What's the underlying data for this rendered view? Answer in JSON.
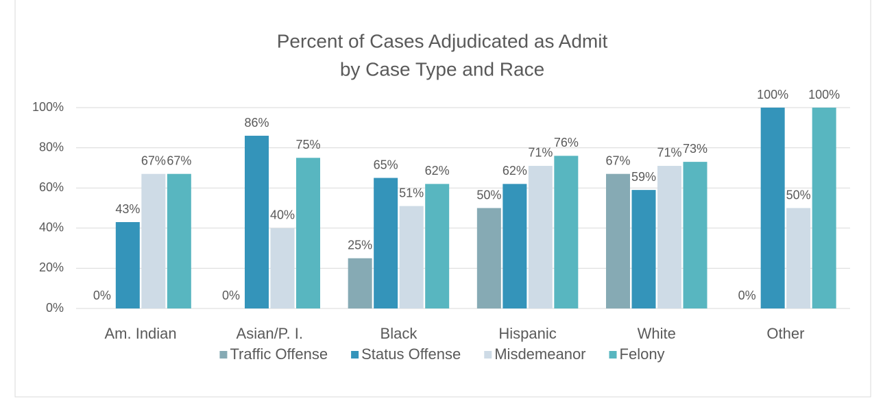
{
  "chart_data": {
    "type": "bar",
    "title": [
      "Percent of Cases Adjudicated as Admit",
      "by Case Type and Race"
    ],
    "categories": [
      "Am. Indian",
      "Asian/P. I.",
      "Black",
      "Hispanic",
      "White",
      "Other"
    ],
    "series": [
      {
        "name": "Traffic Offense",
        "color": "#86aab4",
        "values": [
          0,
          0,
          25,
          50,
          67,
          0
        ],
        "value_labels": [
          "0%",
          "0%",
          "25%",
          "50%",
          "67%",
          "0%"
        ]
      },
      {
        "name": "Status Offense",
        "color": "#3494ba",
        "values": [
          43,
          86,
          65,
          62,
          59,
          100
        ],
        "value_labels": [
          "43%",
          "86%",
          "65%",
          "62%",
          "59%",
          "100%"
        ]
      },
      {
        "name": "Misdemeanor",
        "color": "#cedbe6",
        "values": [
          67,
          40,
          51,
          71,
          71,
          50
        ],
        "value_labels": [
          "67%",
          "40%",
          "51%",
          "71%",
          "71%",
          "50%"
        ]
      },
      {
        "name": "Felony",
        "color": "#58b6c0",
        "values": [
          67,
          75,
          62,
          76,
          73,
          100
        ],
        "value_labels": [
          "67%",
          "75%",
          "62%",
          "76%",
          "73%",
          "100%"
        ]
      }
    ],
    "ylim": [
      0,
      100
    ],
    "yticks": [
      {
        "value": 0,
        "label": "0%"
      },
      {
        "value": 20,
        "label": "20%"
      },
      {
        "value": 40,
        "label": "40%"
      },
      {
        "value": 60,
        "label": "60%"
      },
      {
        "value": 80,
        "label": "80%"
      },
      {
        "value": 100,
        "label": "100%"
      }
    ],
    "grid": true,
    "legend": "bottom"
  }
}
